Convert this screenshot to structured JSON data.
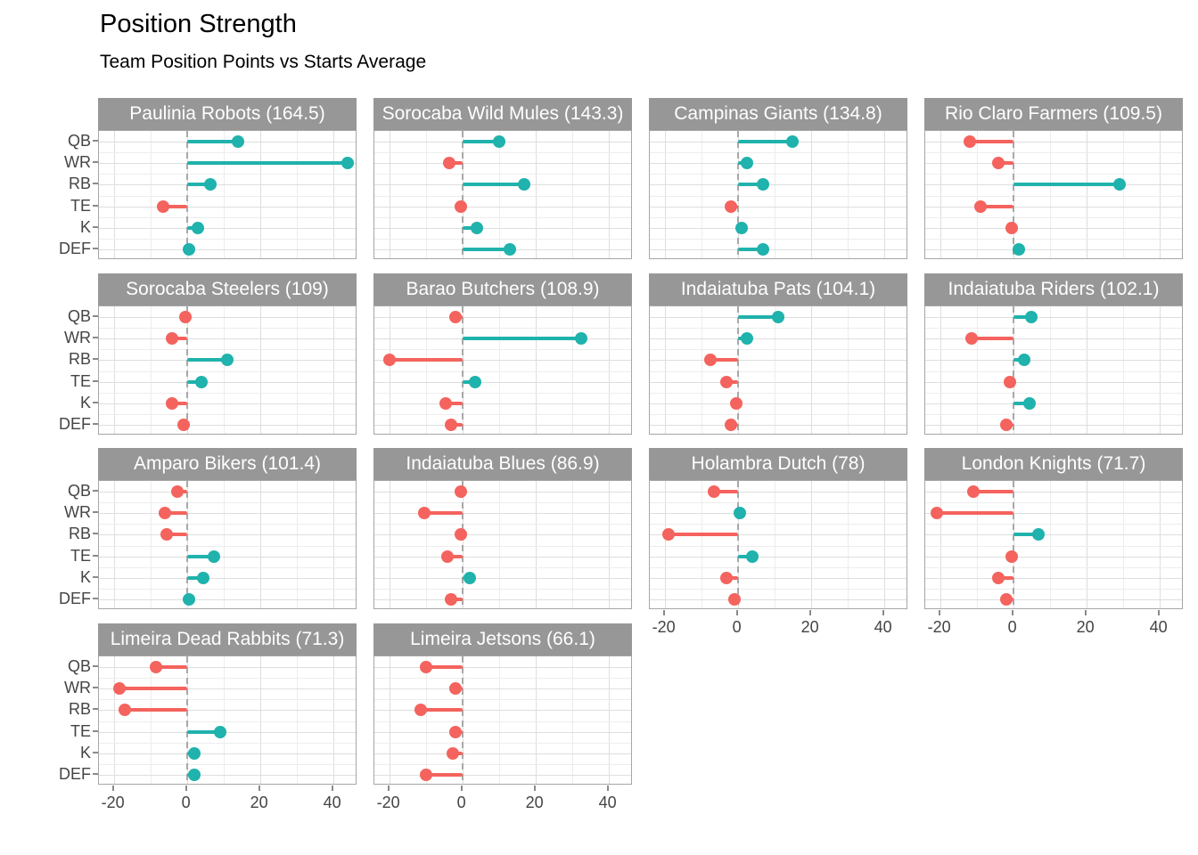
{
  "page": {
    "title": "Position Strength",
    "subtitle": "Team Position Points vs Starts Average"
  },
  "chart_data": {
    "type": "lollipop",
    "title": "Position Strength",
    "subtitle": "Team Position Points vs Starts Average",
    "facet_layout": "4-column grid of team panels, strip label above each panel",
    "positions": [
      "QB",
      "WR",
      "RB",
      "TE",
      "K",
      "DEF"
    ],
    "x_ticks": [
      "-20",
      "0",
      "20",
      "40"
    ],
    "xlim": [
      -24,
      47
    ],
    "grid": true,
    "zero_line": "dashed-vertical",
    "legend_position": "none",
    "colors": {
      "positive": "#20B2AC",
      "negative": "#F4635D",
      "strip_bg": "#979797",
      "strip_text": "#FFFFFF",
      "gridline": "#DEDEDE",
      "axis_text": "#444444"
    },
    "teams": [
      {
        "name": "Paulinia Robots",
        "total": 164.5,
        "strip_label": "Paulinia Robots (164.5)",
        "values": [
          14,
          44,
          6.5,
          -6.5,
          3,
          0.5
        ]
      },
      {
        "name": "Sorocaba Wild Mules",
        "total": 143.3,
        "strip_label": "Sorocaba Wild Mules (143.3)",
        "values": [
          10,
          -3.5,
          17,
          -0.5,
          4,
          13
        ]
      },
      {
        "name": "Campinas Giants",
        "total": 134.8,
        "strip_label": "Campinas Giants (134.8)",
        "values": [
          15,
          2.5,
          7,
          -2,
          1,
          7
        ]
      },
      {
        "name": "Rio Claro Farmers",
        "total": 109.5,
        "strip_label": "Rio Claro Farmers (109.5)",
        "values": [
          -12,
          -4,
          29,
          -9,
          -0.5,
          1.5
        ]
      },
      {
        "name": "Sorocaba Steelers",
        "total": 109,
        "strip_label": "Sorocaba Steelers (109)",
        "values": [
          -0.5,
          -4,
          11,
          4,
          -4,
          -1
        ]
      },
      {
        "name": "Barao Butchers",
        "total": 108.9,
        "strip_label": "Barao Butchers (108.9)",
        "values": [
          -2,
          32.5,
          -20,
          3.5,
          -4.5,
          -3
        ]
      },
      {
        "name": "Indaiatuba Pats",
        "total": 104.1,
        "strip_label": "Indaiatuba Pats (104.1)",
        "values": [
          11,
          2.5,
          -7.5,
          -3,
          -0.5,
          -2
        ]
      },
      {
        "name": "Indaiatuba Riders",
        "total": 102.1,
        "strip_label": "Indaiatuba Riders (102.1)",
        "values": [
          5,
          -11.5,
          3,
          -1,
          4.5,
          -2
        ]
      },
      {
        "name": "Amparo Bikers",
        "total": 101.4,
        "strip_label": "Amparo Bikers (101.4)",
        "values": [
          -2.5,
          -6,
          -5.5,
          7.5,
          4.5,
          0.5
        ]
      },
      {
        "name": "Indaiatuba Blues",
        "total": 86.9,
        "strip_label": "Indaiatuba Blues (86.9)",
        "values": [
          -0.5,
          -10.5,
          -0.5,
          -4,
          2,
          -3
        ]
      },
      {
        "name": "Holambra Dutch",
        "total": 78,
        "strip_label": "Holambra Dutch (78)",
        "values": [
          -6.5,
          0.5,
          -19,
          4,
          -3,
          -1
        ]
      },
      {
        "name": "London Knights",
        "total": 71.7,
        "strip_label": "London Knights (71.7)",
        "values": [
          -11,
          -21,
          7,
          -0.5,
          -4,
          -2
        ]
      },
      {
        "name": "Limeira Dead Rabbits",
        "total": 71.3,
        "strip_label": "Limeira Dead Rabbits (71.3)",
        "values": [
          -8.5,
          -18.5,
          -17,
          9,
          2,
          2
        ]
      },
      {
        "name": "Limeira Jetsons",
        "total": 66.1,
        "strip_label": "Limeira Jetsons (66.1)",
        "values": [
          -10,
          -2,
          -11.5,
          -2,
          -2.5,
          -10
        ]
      }
    ]
  }
}
